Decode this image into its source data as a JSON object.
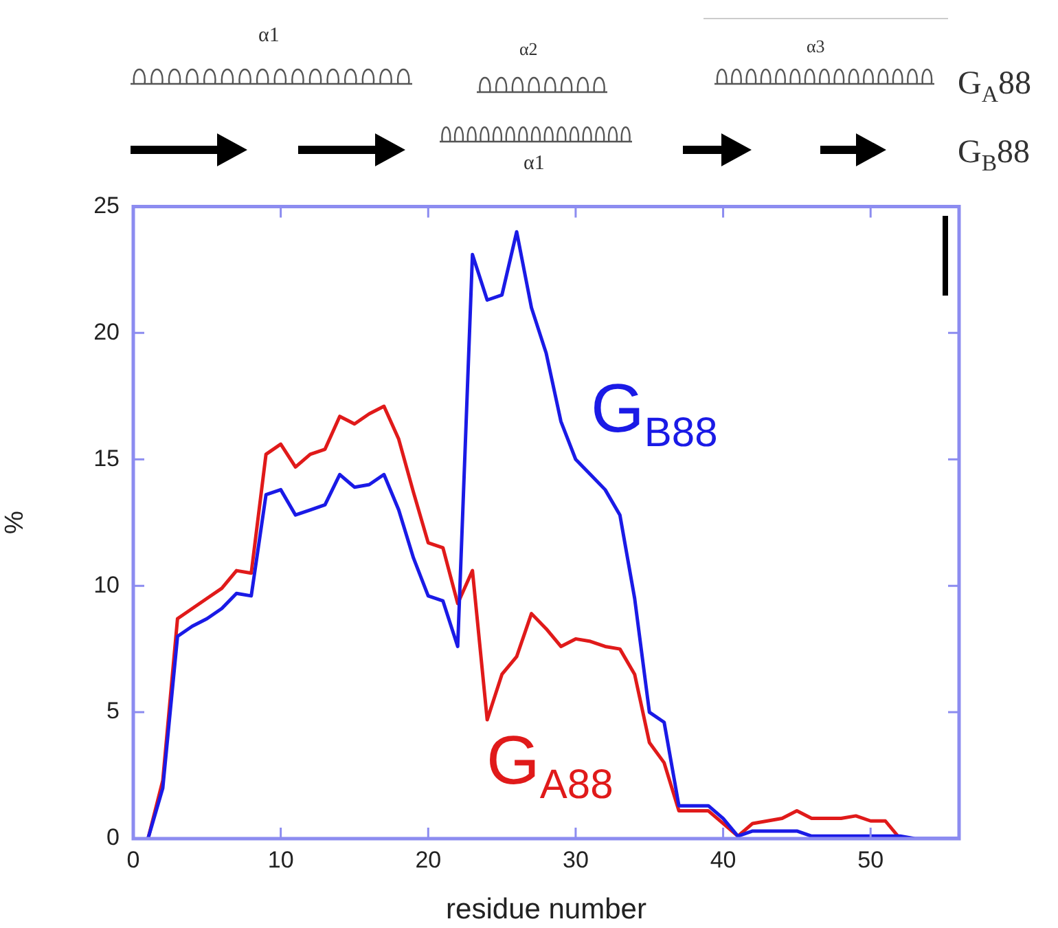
{
  "chart_data": {
    "type": "line",
    "xlabel": "residue number",
    "ylabel": "%",
    "x": [
      1,
      2,
      3,
      4,
      5,
      6,
      7,
      8,
      9,
      10,
      11,
      12,
      13,
      14,
      15,
      16,
      17,
      18,
      19,
      20,
      21,
      22,
      23,
      24,
      25,
      26,
      27,
      28,
      29,
      30,
      31,
      32,
      33,
      34,
      35,
      36,
      37,
      38,
      39,
      40,
      41,
      42,
      43,
      44,
      45,
      46,
      47,
      48,
      49,
      50,
      51,
      52,
      53,
      54,
      55,
      56
    ],
    "series": [
      {
        "name": "G$_{B88}$",
        "color": "#1a1ae6",
        "values": [
          0,
          2,
          8.0,
          8.4,
          8.7,
          9.1,
          9.7,
          9.6,
          13.6,
          13.8,
          12.8,
          13.0,
          13.2,
          14.4,
          13.9,
          14.0,
          14.4,
          13.0,
          11.1,
          9.6,
          9.4,
          7.6,
          23.1,
          21.3,
          21.5,
          24.0,
          21.0,
          19.2,
          16.5,
          15.0,
          14.4,
          13.8,
          12.8,
          9.5,
          5.0,
          4.6,
          1.3,
          1.3,
          1.3,
          0.8,
          0.1,
          0.3,
          0.3,
          0.3,
          0.3,
          0.1,
          0.1,
          0.1,
          0.1,
          0.1,
          0.1,
          0.1,
          0,
          0,
          0,
          0
        ]
      },
      {
        "name": "G$_{A88}$",
        "color": "#e01a1a",
        "values": [
          0,
          2.3,
          8.7,
          9.1,
          9.5,
          9.9,
          10.6,
          10.5,
          15.2,
          15.6,
          14.7,
          15.2,
          15.4,
          16.7,
          16.4,
          16.8,
          17.1,
          15.8,
          13.7,
          11.7,
          11.5,
          9.3,
          10.6,
          4.7,
          6.5,
          7.2,
          8.9,
          8.3,
          7.6,
          7.9,
          7.8,
          7.6,
          7.5,
          6.5,
          3.8,
          3.0,
          1.1,
          1.1,
          1.1,
          0.6,
          0.1,
          0.6,
          0.7,
          0.8,
          1.1,
          0.8,
          0.8,
          0.8,
          0.9,
          0.7,
          0.7,
          0,
          null,
          null,
          null,
          null
        ]
      }
    ],
    "xlim": [
      0,
      56
    ],
    "xticks": [
      0,
      10,
      20,
      30,
      40,
      50
    ],
    "ylim": [
      0,
      25
    ],
    "yticks": [
      0,
      5,
      10,
      15,
      20,
      25
    ],
    "grid": false,
    "legend": false,
    "marker": "none",
    "line_style": "solid",
    "annotations": [
      "α1",
      "α2",
      "α3",
      "α1",
      "G$_{A}$88",
      "G$_{B}$88"
    ]
  }
}
